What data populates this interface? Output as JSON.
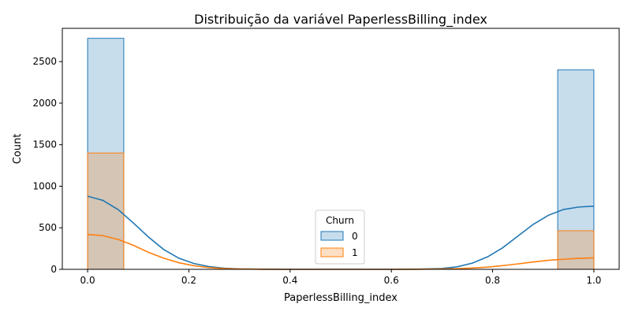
{
  "chart_data": {
    "type": "histogram",
    "title": "Distribuição da variável PaperlessBilling_index",
    "xlabel": "PaperlessBilling_index",
    "ylabel": "Count",
    "xlim": [
      -0.05,
      1.05
    ],
    "ylim": [
      0,
      2900
    ],
    "x_ticks": [
      0.0,
      0.2,
      0.4,
      0.6,
      0.8,
      1.0
    ],
    "x_tick_labels": [
      "0.0",
      "0.2",
      "0.4",
      "0.6",
      "0.8",
      "1.0"
    ],
    "y_ticks": [
      0,
      500,
      1000,
      1500,
      2000,
      2500
    ],
    "y_tick_labels": [
      "0",
      "500",
      "1000",
      "1500",
      "2000",
      "2500"
    ],
    "grid": false,
    "legend": {
      "title": "Churn",
      "placement": "lower-center",
      "entries": [
        "0",
        "1"
      ]
    },
    "bins": [
      {
        "x0": 0.0,
        "x1": 0.0714
      },
      {
        "x0": 0.9286,
        "x1": 1.0
      }
    ],
    "series": [
      {
        "name": "0",
        "color": "#1f77b4",
        "counts": [
          2780,
          2400
        ],
        "kde": {
          "x": [
            0.0,
            0.03,
            0.06,
            0.09,
            0.12,
            0.15,
            0.18,
            0.21,
            0.24,
            0.27,
            0.3,
            0.35,
            0.4,
            0.5,
            0.6,
            0.65,
            0.7,
            0.73,
            0.76,
            0.79,
            0.82,
            0.85,
            0.88,
            0.91,
            0.94,
            0.97,
            1.0
          ],
          "y": [
            880,
            830,
            720,
            560,
            390,
            240,
            135,
            70,
            33,
            14,
            6,
            2,
            0,
            0,
            0,
            2,
            10,
            30,
            75,
            150,
            260,
            400,
            540,
            650,
            720,
            750,
            760
          ]
        }
      },
      {
        "name": "1",
        "color": "#ff7f0e",
        "counts": [
          1400,
          465
        ],
        "kde": {
          "x": [
            0.0,
            0.03,
            0.06,
            0.09,
            0.12,
            0.15,
            0.18,
            0.21,
            0.24,
            0.27,
            0.3,
            0.35,
            0.4,
            0.5,
            0.6,
            0.65,
            0.7,
            0.73,
            0.76,
            0.79,
            0.82,
            0.85,
            0.88,
            0.91,
            0.94,
            0.97,
            1.0
          ],
          "y": [
            420,
            405,
            360,
            290,
            205,
            135,
            80,
            43,
            20,
            9,
            4,
            1,
            0,
            0,
            0,
            1,
            4,
            8,
            16,
            27,
            45,
            65,
            88,
            108,
            122,
            132,
            138
          ]
        }
      }
    ]
  }
}
